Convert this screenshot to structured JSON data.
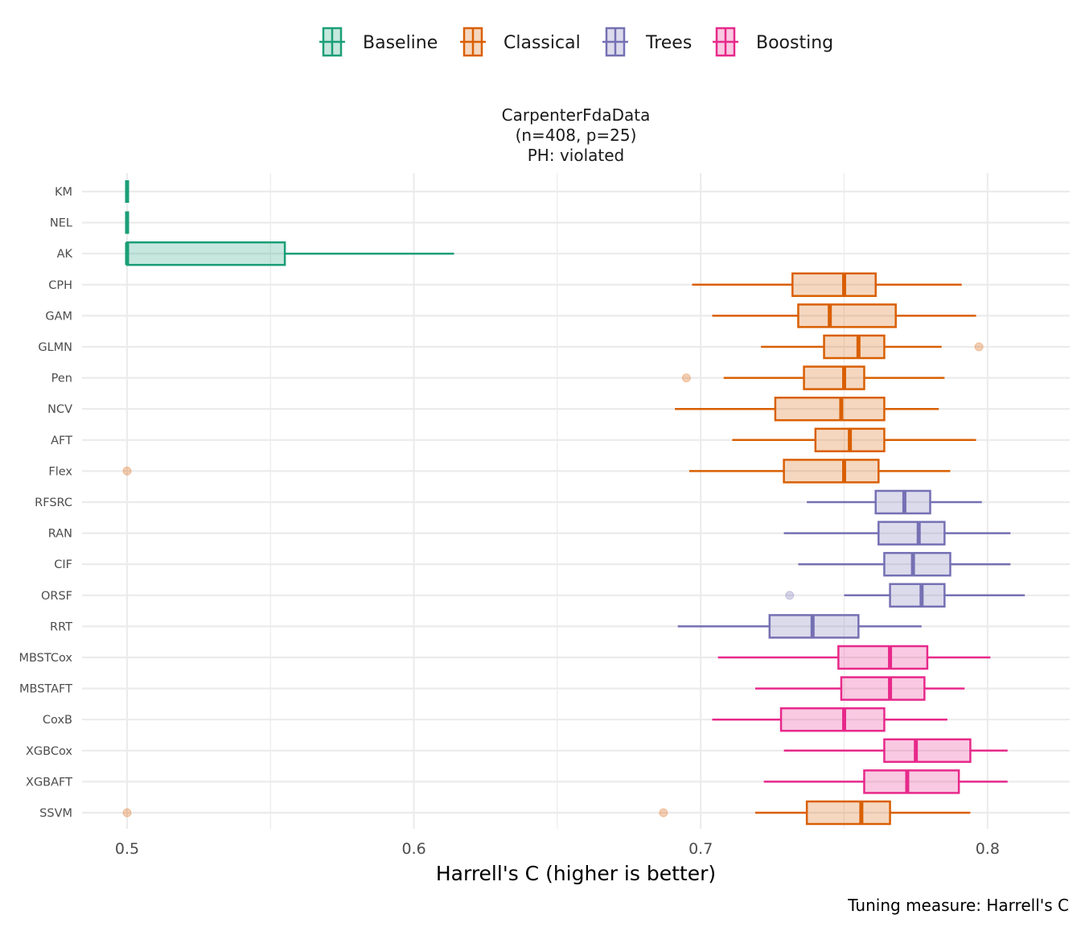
{
  "chart_data": {
    "type": "boxplot",
    "orientation": "horizontal",
    "facet_title": [
      "CarpenterFdaData",
      "(n=408, p=25)",
      "PH: violated"
    ],
    "xlabel": "Harrell's C (higher is better)",
    "ylabel": "",
    "caption": "Tuning measure: Harrell's C",
    "xlim": [
      0.4835,
      0.8275
    ],
    "xticks": [
      0.5,
      0.6,
      0.7,
      0.8
    ],
    "xtick_labels": [
      "0.5",
      "0.6",
      "0.7",
      "0.8"
    ],
    "x_minor_gridlines": [
      0.55,
      0.65,
      0.75
    ],
    "grid": true,
    "legend": {
      "position": "top",
      "entries": [
        {
          "name": "Baseline",
          "color": "#1b9e77"
        },
        {
          "name": "Classical",
          "color": "#d95f02"
        },
        {
          "name": "Trees",
          "color": "#7570b3"
        },
        {
          "name": "Boosting",
          "color": "#e7298a"
        }
      ]
    },
    "boxes": [
      {
        "learner": "KM",
        "group": "Baseline",
        "whisker_low": 0.5,
        "q1": 0.5,
        "median": 0.5,
        "q3": 0.5,
        "whisker_high": 0.5,
        "outliers": []
      },
      {
        "learner": "NEL",
        "group": "Baseline",
        "whisker_low": 0.5,
        "q1": 0.5,
        "median": 0.5,
        "q3": 0.5,
        "whisker_high": 0.5,
        "outliers": []
      },
      {
        "learner": "AK",
        "group": "Baseline",
        "whisker_low": 0.5,
        "q1": 0.5,
        "median": 0.5,
        "q3": 0.555,
        "whisker_high": 0.614,
        "outliers": []
      },
      {
        "learner": "CPH",
        "group": "Classical",
        "whisker_low": 0.697,
        "q1": 0.732,
        "median": 0.75,
        "q3": 0.761,
        "whisker_high": 0.791,
        "outliers": []
      },
      {
        "learner": "GAM",
        "group": "Classical",
        "whisker_low": 0.704,
        "q1": 0.734,
        "median": 0.745,
        "q3": 0.768,
        "whisker_high": 0.796,
        "outliers": []
      },
      {
        "learner": "GLMN",
        "group": "Classical",
        "whisker_low": 0.721,
        "q1": 0.743,
        "median": 0.755,
        "q3": 0.764,
        "whisker_high": 0.784,
        "outliers": [
          0.797
        ]
      },
      {
        "learner": "Pen",
        "group": "Classical",
        "whisker_low": 0.708,
        "q1": 0.736,
        "median": 0.75,
        "q3": 0.757,
        "whisker_high": 0.785,
        "outliers": [
          0.695
        ]
      },
      {
        "learner": "NCV",
        "group": "Classical",
        "whisker_low": 0.691,
        "q1": 0.726,
        "median": 0.749,
        "q3": 0.764,
        "whisker_high": 0.783,
        "outliers": []
      },
      {
        "learner": "AFT",
        "group": "Classical",
        "whisker_low": 0.711,
        "q1": 0.74,
        "median": 0.752,
        "q3": 0.764,
        "whisker_high": 0.796,
        "outliers": []
      },
      {
        "learner": "Flex",
        "group": "Classical",
        "whisker_low": 0.696,
        "q1": 0.729,
        "median": 0.75,
        "q3": 0.762,
        "whisker_high": 0.787,
        "outliers": [
          0.5
        ]
      },
      {
        "learner": "RFSRC",
        "group": "Trees",
        "whisker_low": 0.737,
        "q1": 0.761,
        "median": 0.771,
        "q3": 0.78,
        "whisker_high": 0.798,
        "outliers": []
      },
      {
        "learner": "RAN",
        "group": "Trees",
        "whisker_low": 0.729,
        "q1": 0.762,
        "median": 0.776,
        "q3": 0.785,
        "whisker_high": 0.808,
        "outliers": []
      },
      {
        "learner": "CIF",
        "group": "Trees",
        "whisker_low": 0.734,
        "q1": 0.764,
        "median": 0.774,
        "q3": 0.787,
        "whisker_high": 0.808,
        "outliers": []
      },
      {
        "learner": "ORSF",
        "group": "Trees",
        "whisker_low": 0.75,
        "q1": 0.766,
        "median": 0.777,
        "q3": 0.785,
        "whisker_high": 0.813,
        "outliers": [
          0.731
        ]
      },
      {
        "learner": "RRT",
        "group": "Trees",
        "whisker_low": 0.692,
        "q1": 0.724,
        "median": 0.739,
        "q3": 0.755,
        "whisker_high": 0.777,
        "outliers": []
      },
      {
        "learner": "MBSTCox",
        "group": "Boosting",
        "whisker_low": 0.706,
        "q1": 0.748,
        "median": 0.766,
        "q3": 0.779,
        "whisker_high": 0.801,
        "outliers": []
      },
      {
        "learner": "MBSTAFT",
        "group": "Boosting",
        "whisker_low": 0.719,
        "q1": 0.749,
        "median": 0.766,
        "q3": 0.778,
        "whisker_high": 0.792,
        "outliers": []
      },
      {
        "learner": "CoxB",
        "group": "Boosting",
        "whisker_low": 0.704,
        "q1": 0.728,
        "median": 0.75,
        "q3": 0.764,
        "whisker_high": 0.786,
        "outliers": []
      },
      {
        "learner": "XGBCox",
        "group": "Boosting",
        "whisker_low": 0.729,
        "q1": 0.764,
        "median": 0.775,
        "q3": 0.794,
        "whisker_high": 0.807,
        "outliers": []
      },
      {
        "learner": "XGBAFT",
        "group": "Boosting",
        "whisker_low": 0.722,
        "q1": 0.757,
        "median": 0.772,
        "q3": 0.79,
        "whisker_high": 0.807,
        "outliers": []
      },
      {
        "learner": "SSVM",
        "group": "Classical",
        "whisker_low": 0.719,
        "q1": 0.737,
        "median": 0.756,
        "q3": 0.766,
        "whisker_high": 0.794,
        "outliers": [
          0.5,
          0.687
        ]
      }
    ]
  }
}
